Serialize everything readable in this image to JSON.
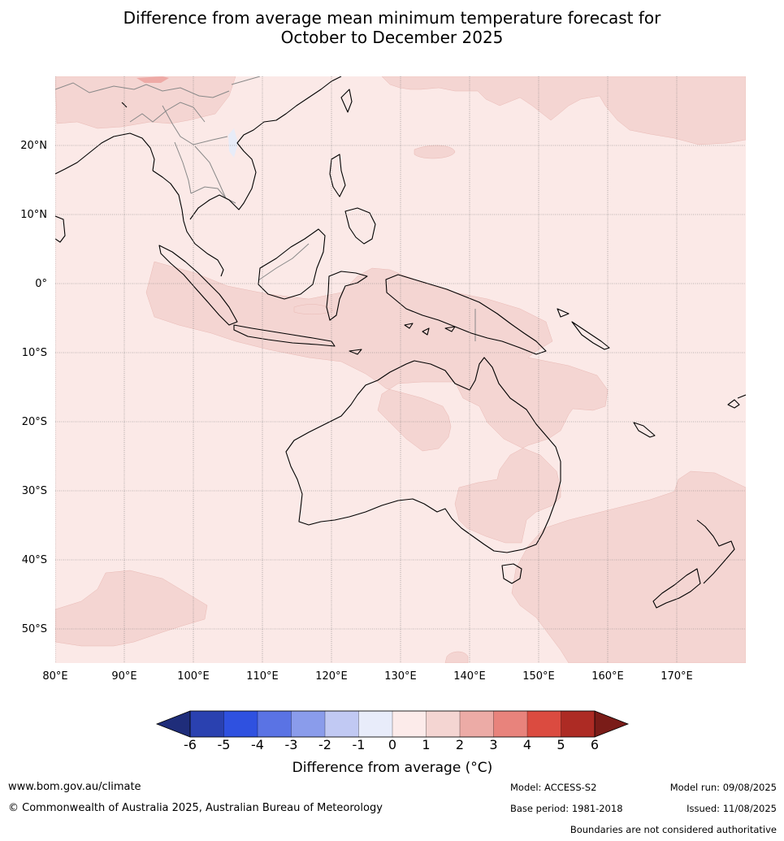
{
  "title": {
    "line1": "Difference from average mean minimum temperature forecast for",
    "line2": "October to December 2025"
  },
  "map": {
    "region": "Australia, Maritime Continent and South-West Pacific",
    "lon_labels": [
      "80°E",
      "90°E",
      "100°E",
      "110°E",
      "120°E",
      "130°E",
      "140°E",
      "150°E",
      "160°E",
      "170°E"
    ],
    "lat_labels": [
      "20°N",
      "10°N",
      "0°",
      "10°S",
      "20°S",
      "30°S",
      "40°S",
      "50°S"
    ],
    "ocean_color": "#fbe9e7",
    "warm_anomaly_color": "#f4d5d2",
    "cool_anomaly_color": "#e8ecf8",
    "hot_spot_color": "#eeaaa6",
    "coastline_color": "#000000",
    "border_color": "#888888"
  },
  "colorbar": {
    "title": "Difference from average (°C)",
    "tick_labels": [
      "-6",
      "-5",
      "-4",
      "-3",
      "-2",
      "-1",
      "0",
      "1",
      "2",
      "3",
      "4",
      "5",
      "6"
    ],
    "under_color": "#1f2d7a",
    "over_color": "#7a1c18",
    "colors": [
      "#2a41b0",
      "#2f51e0",
      "#5a73e4",
      "#8a9ceb",
      "#c1c9f3",
      "#e8ecfa",
      "#fcebea",
      "#f4d5d2",
      "#ecaba6",
      "#e8837c",
      "#db4b40",
      "#ad2b24"
    ]
  },
  "footer": {
    "website": "www.bom.gov.au/climate",
    "copyright": "© Commonwealth of Australia 2025, Australian Bureau of Meteorology",
    "model": "Model: ACCESS-S2",
    "base_period": "Base period: 1981-2018",
    "model_run": "Model run: 09/08/2025",
    "issued": "Issued: 11/08/2025",
    "disclaimer": "Boundaries are not considered authoritative"
  }
}
